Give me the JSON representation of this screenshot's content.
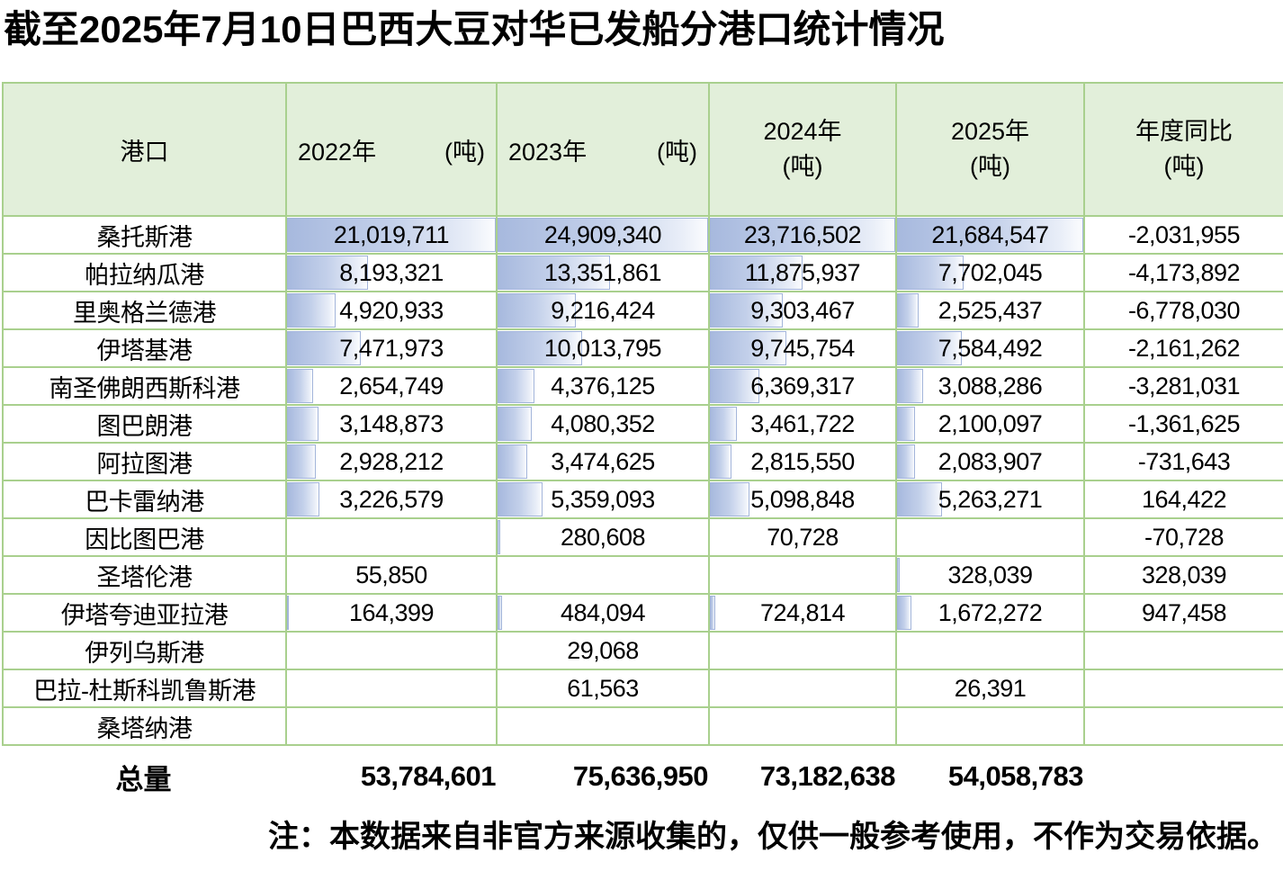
{
  "title": "截至2025年7月10日巴西大豆对华已发船分港口统计情况",
  "note": "注：本数据来自非官方来源收集的，仅供一般参考使用，不作为交易依据。",
  "colors": {
    "header_bg": "#e2efda",
    "grid_line_green": "#a9d08e",
    "databar_fill_start": "#a7b9de",
    "databar_fill_end": "#fbfcfe",
    "databar_border": "#a3b5da",
    "text": "#000000"
  },
  "table": {
    "header": {
      "port": "港口",
      "years": [
        {
          "key": "y2022",
          "year": "2022年",
          "unit": "(吨)",
          "layout": "inline"
        },
        {
          "key": "y2023",
          "year": "2023年",
          "unit": "(吨)",
          "layout": "inline"
        },
        {
          "key": "y2024",
          "year": "2024年",
          "unit": "(吨)",
          "layout": "stacked"
        },
        {
          "key": "y2025",
          "year": "2025年",
          "unit": "(吨)",
          "layout": "stacked"
        },
        {
          "key": "yoy",
          "year": "年度同比",
          "unit": "(吨)",
          "layout": "stacked"
        }
      ]
    },
    "totals_label": "总量"
  },
  "chart_data": {
    "type": "table",
    "title": "截至2025年7月10日巴西大豆对华已发船分港口统计情况",
    "columns": [
      "港口",
      "2022年(吨)",
      "2023年(吨)",
      "2024年(吨)",
      "2025年(吨)",
      "年度同比(吨)"
    ],
    "rows": [
      [
        "桑托斯港",
        21019711,
        24909340,
        23716502,
        21684547,
        -2031955
      ],
      [
        "帕拉纳瓜港",
        8193321,
        13351861,
        11875937,
        7702045,
        -4173892
      ],
      [
        "里奥格兰德港",
        4920933,
        9216424,
        9303467,
        2525437,
        -6778030
      ],
      [
        "伊塔基港",
        7471973,
        10013795,
        9745754,
        7584492,
        -2161262
      ],
      [
        "南圣佛朗西斯科港",
        2654749,
        4376125,
        6369317,
        3088286,
        -3281031
      ],
      [
        "图巴朗港",
        3148873,
        4080352,
        3461722,
        2100097,
        -1361625
      ],
      [
        "阿拉图港",
        2928212,
        3474625,
        2815550,
        2083907,
        -731643
      ],
      [
        "巴卡雷纳港",
        3226579,
        5359093,
        5098848,
        5263271,
        164422
      ],
      [
        "因比图巴港",
        null,
        280608,
        70728,
        null,
        -70728
      ],
      [
        "圣塔伦港",
        55850,
        null,
        null,
        328039,
        328039
      ],
      [
        "伊塔夸迪亚拉港",
        164399,
        484094,
        724814,
        1672272,
        947458
      ],
      [
        "伊列乌斯港",
        null,
        29068,
        null,
        null,
        null
      ],
      [
        "巴拉-杜斯科凯鲁斯港",
        null,
        61563,
        null,
        26391,
        null
      ],
      [
        "桑塔纳港",
        null,
        null,
        null,
        null,
        null
      ]
    ],
    "totals": [
      "总量",
      53784601,
      75636950,
      73182638,
      54058783,
      null
    ],
    "layout_hints": "blue gradient data bars in the four year columns, width scaled to per-column maximum; no bars in year-over-year column"
  }
}
